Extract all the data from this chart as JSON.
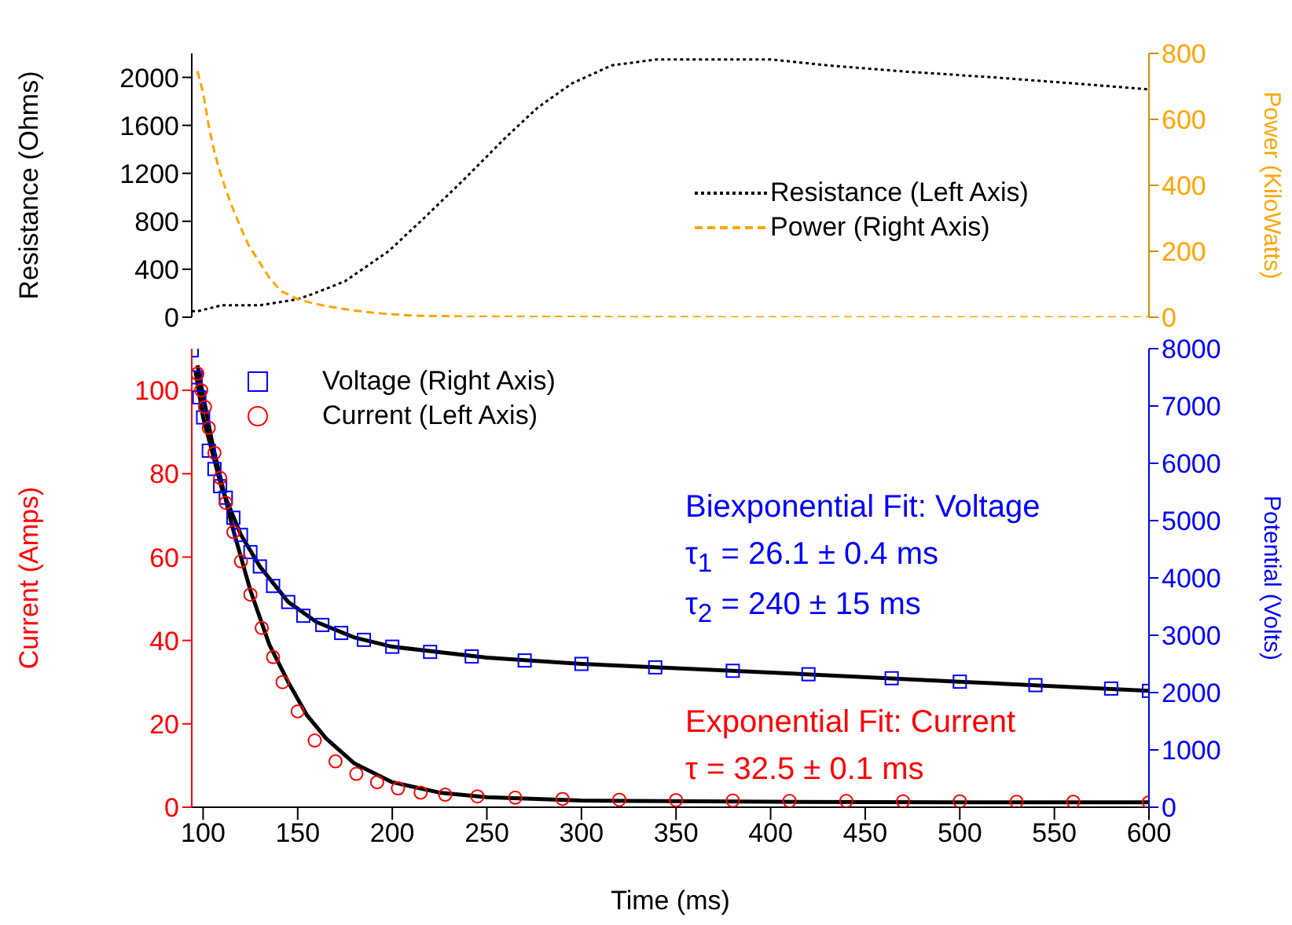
{
  "chart_data": [
    {
      "type": "line",
      "ylabel": "Resistance (Ohms)",
      "y2label": "Power (KiloWatts)",
      "xlim": [
        94,
        600
      ],
      "ylim": [
        0,
        2200
      ],
      "yticks": [
        0,
        400,
        800,
        1200,
        1600,
        2000
      ],
      "y2lim": [
        0,
        800
      ],
      "y2ticks": [
        0,
        200,
        400,
        600,
        800
      ],
      "tick_labels": "y",
      "grid": false,
      "legend": "right",
      "marker": "none",
      "series": [
        {
          "name": "Resistance (Left Axis)",
          "color": "#000000",
          "line_style": "dotted",
          "x": [
            94,
            97,
            110,
            130,
            150,
            159,
            175,
            198,
            215,
            238,
            260,
            277,
            295,
            316,
            340,
            364,
            400,
            430,
            470,
            518,
            560,
            600
          ],
          "values": [
            50,
            50,
            100,
            100,
            150,
            200,
            300,
            550,
            800,
            1150,
            1500,
            1750,
            1950,
            2100,
            2150,
            2150,
            2150,
            2100,
            2050,
            2000,
            1950,
            1900
          ]
        },
        {
          "name": "Power (Right Axis)",
          "color": "#ffa500",
          "line_style": "dashed",
          "axis": "y2",
          "x": [
            97,
            100,
            103,
            106,
            110,
            115,
            120,
            124,
            130,
            135,
            141,
            150,
            158,
            167,
            180,
            195,
            211,
            240,
            300,
            400,
            500,
            600
          ],
          "values": [
            746,
            680,
            580,
            500,
            420,
            340,
            270,
            219,
            165,
            120,
            80,
            55,
            42,
            32,
            20,
            11,
            5,
            2,
            1,
            0,
            0,
            0
          ]
        }
      ]
    },
    {
      "type": "scatter",
      "xlabel": "Time (ms)",
      "ylabel": "Current (Amps)",
      "y2label": "Potential (Volts)",
      "xlim": [
        94,
        600
      ],
      "xticks": [
        100,
        150,
        200,
        250,
        300,
        350,
        400,
        450,
        500,
        550,
        600
      ],
      "ylim": [
        0,
        110
      ],
      "yticks": [
        0,
        20,
        40,
        60,
        80,
        100
      ],
      "y2lim": [
        0,
        8000
      ],
      "y2ticks": [
        0,
        1000,
        2000,
        3000,
        4000,
        5000,
        6000,
        7000,
        8000
      ],
      "grid": false,
      "legend": "top left",
      "annotations": [
        "Biexponential Fit: Voltage",
        "τ$_{1}$ = 26.1 ± 0.4 ms",
        "τ$_{2}$ = 240 ± 15 ms",
        "Exponential Fit: Current",
        "τ = 32.5 ± 0.1 ms"
      ],
      "series": [
        {
          "name": "Voltage (Right Axis)",
          "color": "#0000ff",
          "marker": "square",
          "axis": "y2",
          "x": [
            94,
            96,
            98,
            100,
            103,
            106,
            109,
            112,
            116,
            120,
            125,
            130,
            137,
            145,
            153,
            163,
            173,
            185,
            200,
            220,
            242,
            270,
            300,
            339,
            380,
            420,
            464,
            500,
            540,
            580,
            600
          ],
          "values": [
            7970,
            7500,
            7150,
            6800,
            6220,
            5900,
            5600,
            5400,
            5050,
            4750,
            4450,
            4200,
            3860,
            3580,
            3340,
            3180,
            3040,
            2920,
            2800,
            2710,
            2630,
            2560,
            2500,
            2440,
            2380,
            2320,
            2250,
            2190,
            2130,
            2070,
            2030
          ]
        },
        {
          "name": "Current (Left Axis)",
          "color": "#ff0000",
          "marker": "circle",
          "x": [
            97,
            99,
            101,
            103,
            106,
            109,
            112,
            116,
            120,
            125,
            131,
            137,
            142,
            150,
            159,
            170,
            181,
            192,
            203,
            215,
            228,
            245,
            265,
            290,
            320,
            350,
            380,
            410,
            440,
            470,
            500,
            530,
            560,
            600
          ],
          "values": [
            104,
            100,
            96,
            91,
            85,
            79,
            73,
            66,
            59,
            51,
            43,
            36,
            30,
            23,
            16,
            11,
            8,
            6,
            4.5,
            3.5,
            3,
            2.6,
            2.3,
            2,
            1.8,
            1.7,
            1.6,
            1.5,
            1.5,
            1.4,
            1.4,
            1.3,
            1.3,
            1.2
          ]
        },
        {
          "type": "line",
          "color": "#000000",
          "line_style": "solid",
          "axis": "y2",
          "x": [
            96,
            100,
            110,
            120,
            130,
            145,
            160,
            180,
            200,
            250,
            300,
            400,
            500,
            600
          ],
          "values": [
            7600,
            6800,
            5550,
            4750,
            4200,
            3580,
            3230,
            2960,
            2800,
            2610,
            2500,
            2350,
            2190,
            2030
          ]
        },
        {
          "type": "line",
          "color": "#000000",
          "line_style": "solid",
          "x": [
            97,
            105,
            115,
            125,
            135,
            145,
            155,
            165,
            180,
            200,
            225,
            250,
            300,
            400,
            500,
            600
          ],
          "values": [
            106,
            87,
            68,
            52,
            39,
            30,
            22,
            16.5,
            10.5,
            6,
            3.5,
            2.4,
            1.6,
            1.3,
            1.2,
            1.2
          ]
        }
      ]
    }
  ]
}
